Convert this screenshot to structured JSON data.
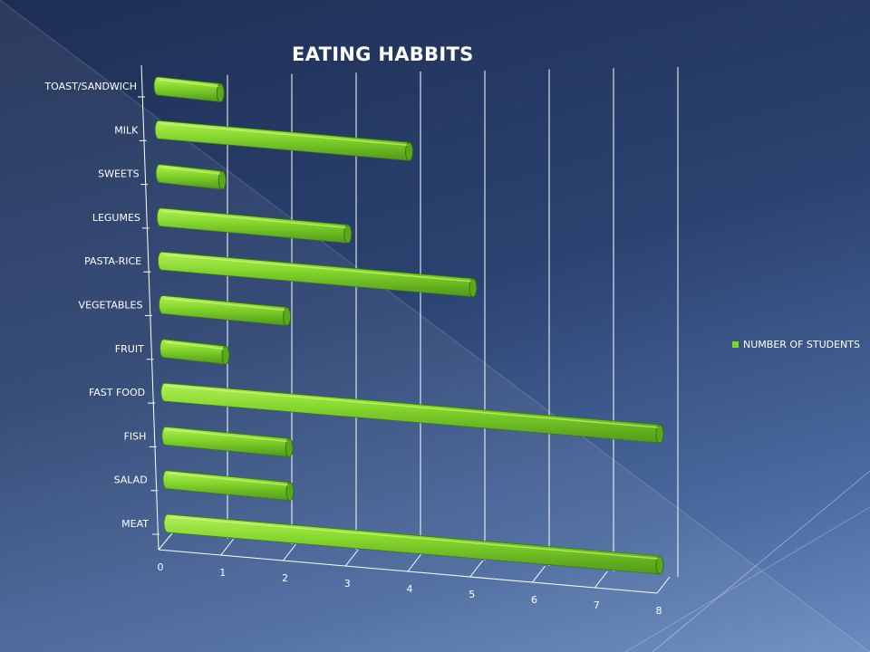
{
  "chart_data": {
    "type": "bar",
    "orientation": "horizontal",
    "title": "EATING HABBITS",
    "categories": [
      "TOAST/SANDWICH",
      "MILK",
      "SWEETS",
      "LEGUMES",
      "PASTA-RICE",
      "VEGETABLES",
      "FRUIT",
      "FAST FOOD",
      "FISH",
      "SALAD",
      "MEAT"
    ],
    "series": [
      {
        "name": "NUMBER OF STUDENTS",
        "values": [
          1,
          4,
          1,
          3,
          5,
          2,
          1,
          8,
          2,
          2,
          8
        ]
      }
    ],
    "x_ticks": [
      "0",
      "1",
      "2",
      "3",
      "4",
      "5",
      "6",
      "7",
      "8"
    ],
    "xlim": [
      0,
      8
    ],
    "grid": true,
    "legend": "right",
    "bar_color": "#7fd62a",
    "style": "3d-cylinder"
  }
}
